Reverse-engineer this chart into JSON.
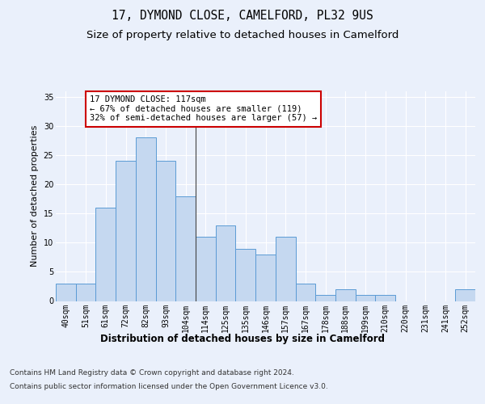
{
  "title": "17, DYMOND CLOSE, CAMELFORD, PL32 9US",
  "subtitle": "Size of property relative to detached houses in Camelford",
  "xlabel": "Distribution of detached houses by size in Camelford",
  "ylabel": "Number of detached properties",
  "categories": [
    "40sqm",
    "51sqm",
    "61sqm",
    "72sqm",
    "82sqm",
    "93sqm",
    "104sqm",
    "114sqm",
    "125sqm",
    "135sqm",
    "146sqm",
    "157sqm",
    "167sqm",
    "178sqm",
    "188sqm",
    "199sqm",
    "210sqm",
    "220sqm",
    "231sqm",
    "241sqm",
    "252sqm"
  ],
  "values": [
    3,
    3,
    16,
    24,
    28,
    24,
    18,
    11,
    13,
    9,
    8,
    11,
    3,
    1,
    2,
    1,
    1,
    0,
    0,
    0,
    2
  ],
  "bar_color": "#c5d8f0",
  "bar_edge_color": "#5b9bd5",
  "vline_x": 7,
  "annotation_text": "17 DYMOND CLOSE: 117sqm\n← 67% of detached houses are smaller (119)\n32% of semi-detached houses are larger (57) →",
  "annotation_box_color": "white",
  "annotation_box_edge_color": "#cc0000",
  "ylim": [
    0,
    36
  ],
  "yticks": [
    0,
    5,
    10,
    15,
    20,
    25,
    30,
    35
  ],
  "background_color": "#eaf0fb",
  "plot_bg_color": "#eaf0fb",
  "grid_color": "white",
  "footer_line1": "Contains HM Land Registry data © Crown copyright and database right 2024.",
  "footer_line2": "Contains public sector information licensed under the Open Government Licence v3.0.",
  "title_fontsize": 10.5,
  "subtitle_fontsize": 9.5,
  "axis_label_fontsize": 8.5,
  "tick_fontsize": 7,
  "footer_fontsize": 6.5,
  "ylabel_fontsize": 8
}
